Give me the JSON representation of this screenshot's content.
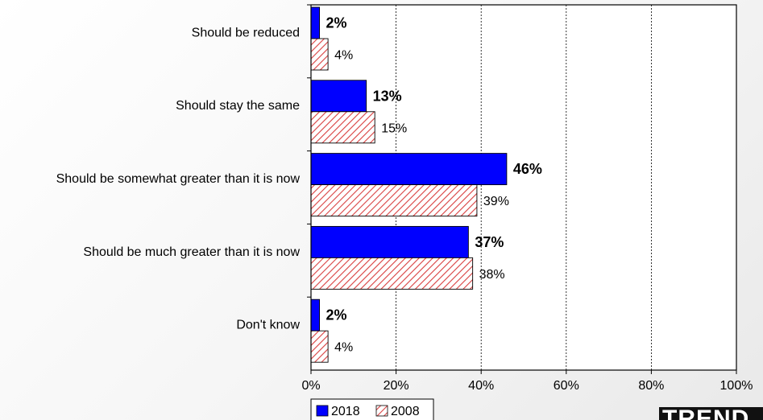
{
  "chart_data": {
    "type": "bar",
    "orientation": "horizontal",
    "categories": [
      "Should be reduced",
      "Should stay the same",
      "Should be somewhat greater than it is now",
      "Should be much greater than it is now",
      "Don't know"
    ],
    "series": [
      {
        "name": "2018",
        "values": [
          2,
          13,
          46,
          37,
          2
        ],
        "labels": [
          "2%",
          "13%",
          "46%",
          "37%",
          "2%"
        ],
        "color": "#0000ff",
        "fill": "solid"
      },
      {
        "name": "2008",
        "values": [
          4,
          15,
          39,
          38,
          4
        ],
        "labels": [
          "4%",
          "15%",
          "39%",
          "38%",
          "4%"
        ],
        "color": "#d94040",
        "fill": "hatched"
      }
    ],
    "xlim": [
      0,
      100
    ],
    "x_ticks": [
      0,
      20,
      40,
      60,
      80,
      100
    ],
    "x_tick_labels": [
      "0%",
      "20%",
      "40%",
      "60%",
      "80%",
      "100%"
    ],
    "grid": "vertical-dashed",
    "legend": "bottom-left"
  },
  "logo": {
    "text": "TREND"
  }
}
